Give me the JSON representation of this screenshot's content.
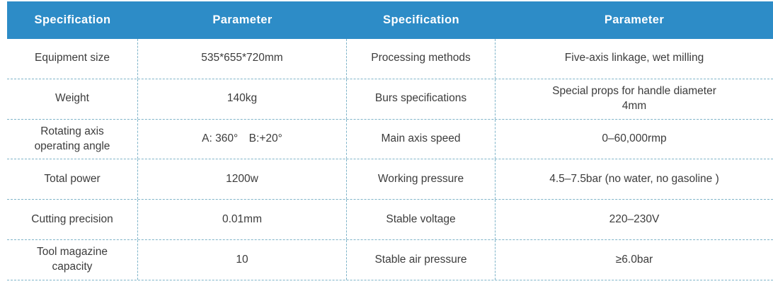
{
  "colors": {
    "header_bg": "#2d8cc7",
    "grid_line": "#7fb4c9",
    "header_text": "#ffffff",
    "body_text": "#3c3c3c"
  },
  "table": {
    "headers": [
      "Specification",
      "Parameter",
      "Specification",
      "Parameter"
    ],
    "rows": [
      {
        "cells": [
          "Equipment size",
          "535*655*720mm",
          "Processing methods",
          "Five-axis linkage, wet milling"
        ]
      },
      {
        "cells": [
          "Weight",
          "140kg",
          "Burs specifications",
          "Special props for handle diameter\n4mm"
        ]
      },
      {
        "cells": [
          "Rotating axis\noperating angle",
          "A: 360° B:+20°",
          "Main axis speed",
          "0–60,000rmp"
        ]
      },
      {
        "cells": [
          "Total power",
          "1200w",
          "Working pressure",
          "4.5–7.5bar (no water, no gasoline )"
        ]
      },
      {
        "cells": [
          "Cutting precision",
          "0.01mm",
          "Stable voltage",
          "220–230V"
        ]
      },
      {
        "cells": [
          "Tool magazine\ncapacity",
          "10",
          "Stable air pressure",
          "≥6.0bar"
        ]
      }
    ]
  }
}
